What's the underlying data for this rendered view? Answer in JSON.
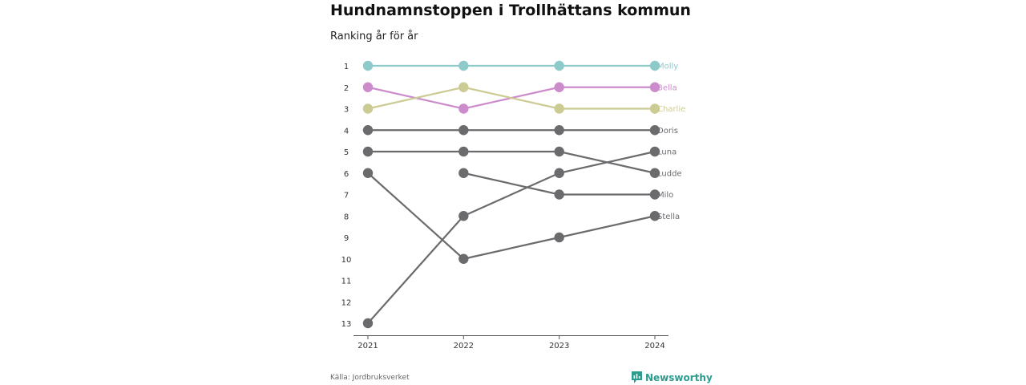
{
  "title": "Hundnamnstoppen i Trollhättans kommun",
  "subtitle": "Ranking år för år",
  "source": "Källa: Jordbruksverket",
  "brand": {
    "name": "Newsworthy",
    "icon": "newsworthy-logo-icon",
    "color": "#2a9d8f"
  },
  "chart_data": {
    "type": "line",
    "title": "Hundnamnstoppen i Trollhättans kommun",
    "subtitle": "Ranking år för år",
    "x": [
      2021,
      2022,
      2023,
      2024
    ],
    "y_ticks": [
      1,
      2,
      3,
      4,
      5,
      6,
      7,
      8,
      9,
      10,
      11,
      12,
      13
    ],
    "ylim": [
      1,
      13
    ],
    "y_reversed": true,
    "grid": false,
    "series": [
      {
        "name": "Molly",
        "values": [
          1,
          1,
          1,
          1
        ],
        "color": "#8fcacb"
      },
      {
        "name": "Bella",
        "values": [
          2,
          3,
          2,
          2
        ],
        "color": "#cc8ccc"
      },
      {
        "name": "Charlie",
        "values": [
          3,
          2,
          3,
          3
        ],
        "color": "#cccb94"
      },
      {
        "name": "Doris",
        "values": [
          4,
          4,
          4,
          4
        ],
        "color": "#6b6b6e"
      },
      {
        "name": "Luna",
        "values": [
          13,
          8,
          6,
          5
        ],
        "color": "#6b6b6e"
      },
      {
        "name": "Ludde",
        "values": [
          5,
          5,
          5,
          6
        ],
        "color": "#6b6b6e"
      },
      {
        "name": "Milo",
        "values": [
          null,
          6,
          7,
          7
        ],
        "color": "#6b6b6e"
      },
      {
        "name": "Stella",
        "values": [
          6,
          10,
          9,
          8
        ],
        "color": "#6b6b6e"
      }
    ]
  }
}
